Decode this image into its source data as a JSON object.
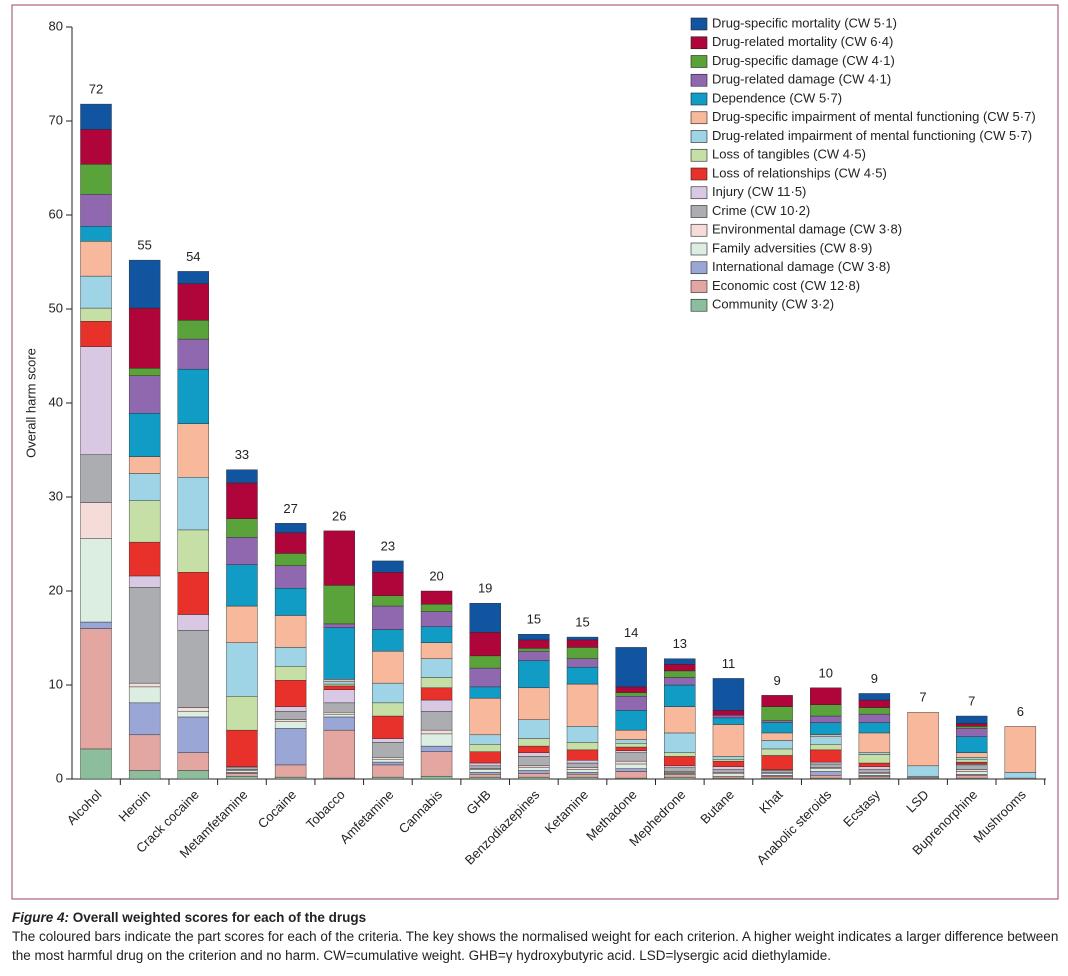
{
  "chart_data": {
    "type": "stacked_bar",
    "ylabel": "Overall harm score",
    "ylim": [
      0,
      80
    ],
    "yticks": [
      0,
      10,
      20,
      30,
      40,
      50,
      60,
      70,
      80
    ],
    "categories": [
      "Alcohol",
      "Heroin",
      "Crack cocaine",
      "Metamfetamine",
      "Cocaine",
      "Tobacco",
      "Amfetamine",
      "Cannabis",
      "GHB",
      "Benzodiazepines",
      "Ketamine",
      "Methadone",
      "Mephedrone",
      "Butane",
      "Khat",
      "Anabolic steroids",
      "Ecstasy",
      "LSD",
      "Buprenorphine",
      "Mushrooms"
    ],
    "totals": [
      72,
      55,
      54,
      33,
      27,
      26,
      23,
      20,
      19,
      15,
      15,
      14,
      13,
      11,
      9,
      10,
      9,
      7,
      7,
      6
    ],
    "series": [
      {
        "name": "Community (CW 3·2)",
        "color": "#8cbd9c",
        "values": [
          3.2,
          0.9,
          0.9,
          0.3,
          0.2,
          0.1,
          0.2,
          0.3,
          0.2,
          0.2,
          0.2,
          0.1,
          0.2,
          0.1,
          0.1,
          0.1,
          0.1,
          0,
          0.1,
          0
        ]
      },
      {
        "name": "Economic cost (CW 12·8)",
        "color": "#e3a6a1",
        "values": [
          12.8,
          3.8,
          1.9,
          0.3,
          1.3,
          5.1,
          1.3,
          2.6,
          0.3,
          0.4,
          0.3,
          0.7,
          0.3,
          0.2,
          0.2,
          0.3,
          0.2,
          0.1,
          0.3,
          0.1
        ]
      },
      {
        "name": "International damage (CW 3·8)",
        "color": "#9aa7d6",
        "values": [
          0.7,
          3.4,
          3.8,
          0.1,
          3.9,
          1.4,
          0.3,
          0.6,
          0.2,
          0.3,
          0.2,
          0.3,
          0.1,
          0,
          0.1,
          0.4,
          0.1,
          0,
          0.1,
          0
        ]
      },
      {
        "name": "Family adversities (CW 8·9)",
        "color": "#dcede2",
        "values": [
          8.9,
          1.7,
          0.6,
          0.2,
          0.7,
          0.3,
          0.3,
          1.3,
          0.3,
          0.3,
          0.3,
          0.5,
          0.1,
          0.3,
          0.2,
          0.3,
          0.2,
          0.1,
          0.3,
          0
        ]
      },
      {
        "name": "Environmental damage (CW 3·8)",
        "color": "#f6dcd8",
        "values": [
          3.8,
          0.4,
          0.4,
          0.1,
          0.2,
          0.2,
          0.2,
          0.4,
          0.1,
          0.2,
          0.2,
          0.3,
          0.1,
          0.1,
          0.1,
          0.1,
          0.1,
          0,
          0.2,
          0
        ]
      },
      {
        "name": "Crime (CW 10·2)",
        "color": "#acadb1",
        "values": [
          5.1,
          10.2,
          8.2,
          0.2,
          0.9,
          1.0,
          1.6,
          2.0,
          0.3,
          1.0,
          0.5,
          0.9,
          0.4,
          0.3,
          0.2,
          0.4,
          0.3,
          0,
          0.5,
          0
        ]
      },
      {
        "name": "Injury (CW 11·5)",
        "color": "#d8c8e4",
        "values": [
          11.5,
          1.2,
          1.7,
          0.1,
          0.5,
          1.4,
          0.4,
          1.2,
          0.3,
          0.4,
          0.3,
          0.2,
          0.2,
          0.3,
          0.1,
          0.2,
          0.3,
          0.1,
          0.1,
          0
        ]
      },
      {
        "name": "Loss of relationships (CW 4·5)",
        "color": "#e8312a",
        "values": [
          2.7,
          3.6,
          4.5,
          3.9,
          2.8,
          0.4,
          2.4,
          1.3,
          1.2,
          0.7,
          1.1,
          0.4,
          1.0,
          0.6,
          1.5,
          1.3,
          0.4,
          0,
          0.2,
          0
        ]
      },
      {
        "name": "Loss of tangibles (CW 4·5)",
        "color": "#c6dfa7",
        "values": [
          1.4,
          4.4,
          4.5,
          3.6,
          1.5,
          0.2,
          1.4,
          1.1,
          0.8,
          0.8,
          0.8,
          0.4,
          0.4,
          0.2,
          0.7,
          0.6,
          0.9,
          0,
          0.3,
          0
        ]
      },
      {
        "name": "Drug-related impairment of mental functioning (CW 5·7)",
        "color": "#9fd4e6",
        "values": [
          3.4,
          2.9,
          5.6,
          5.7,
          2.0,
          0.3,
          2.1,
          2.0,
          1.0,
          2.0,
          1.7,
          0.4,
          2.1,
          0.3,
          0.9,
          0.8,
          0.2,
          1.1,
          0.2,
          0.6
        ]
      },
      {
        "name": "Drug-specific impairment of mental functioning (CW 5·7)",
        "color": "#f7b89c",
        "values": [
          3.7,
          1.8,
          5.7,
          3.9,
          3.4,
          0.2,
          3.4,
          1.7,
          3.9,
          3.4,
          4.5,
          1.0,
          2.8,
          3.4,
          0.8,
          0.2,
          2.1,
          5.7,
          0.5,
          4.9
        ]
      },
      {
        "name": "Dependence (CW 5·7)",
        "color": "#109cc4",
        "values": [
          1.6,
          4.6,
          5.8,
          4.4,
          2.9,
          5.5,
          2.3,
          1.7,
          1.2,
          2.9,
          1.8,
          2.1,
          2.3,
          0.7,
          1.1,
          1.3,
          1.1,
          0,
          1.7,
          0
        ]
      },
      {
        "name": "Drug-related damage (CW 4·1)",
        "color": "#9068b0",
        "values": [
          3.4,
          4.0,
          3.2,
          2.9,
          2.4,
          0.4,
          2.5,
          1.6,
          2.0,
          1.0,
          0.9,
          1.5,
          0.8,
          0.3,
          0.2,
          0.7,
          0.9,
          0,
          0.9,
          0
        ]
      },
      {
        "name": "Drug-specific damage (CW 4·1)",
        "color": "#5aa33a",
        "values": [
          3.2,
          0.8,
          2.0,
          2.0,
          1.3,
          4.1,
          1.1,
          0.8,
          1.3,
          0.3,
          1.2,
          0.4,
          0.7,
          0,
          1.5,
          1.2,
          0.7,
          0,
          0.2,
          0
        ]
      },
      {
        "name": "Drug-related mortality (CW 6·4)",
        "color": "#b0053a",
        "values": [
          3.7,
          6.4,
          3.9,
          3.8,
          2.2,
          5.8,
          2.5,
          1.4,
          2.5,
          0.9,
          0.8,
          0.6,
          0.7,
          0.5,
          1.2,
          1.8,
          0.8,
          0,
          0.3,
          0
        ]
      },
      {
        "name": "Drug-specific mortality (CW 5·1)",
        "color": "#1155a0",
        "values": [
          2.7,
          5.1,
          1.3,
          1.4,
          1.0,
          0,
          1.2,
          0,
          3.1,
          0.6,
          0.3,
          4.2,
          0.6,
          3.4,
          0,
          0,
          0.7,
          0,
          0.8,
          0
        ]
      }
    ]
  },
  "caption": {
    "label": "Figure 4:",
    "title": "Overall weighted scores for each of the drugs",
    "text": "The coloured bars indicate the part scores for each of the criteria. The key shows the normalised weight for each criterion. A higher weight indicates a larger difference between the most harmful drug on the criterion and no harm. CW=cumulative weight. GHB=γ hydroxybutyric acid. LSD=lysergic acid diethylamide."
  }
}
